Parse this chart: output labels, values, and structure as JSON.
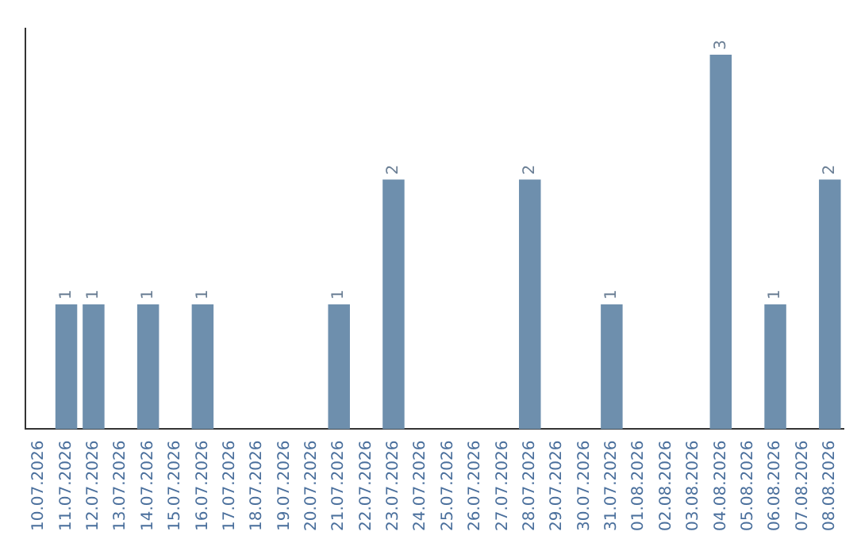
{
  "chart_data": {
    "type": "bar",
    "categories": [
      "10.07.2026",
      "11.07.2026",
      "12.07.2026",
      "13.07.2026",
      "14.07.2026",
      "15.07.2026",
      "16.07.2026",
      "17.07.2026",
      "18.07.2026",
      "19.07.2026",
      "20.07.2026",
      "21.07.2026",
      "22.07.2026",
      "23.07.2026",
      "24.07.2026",
      "25.07.2026",
      "26.07.2026",
      "27.07.2026",
      "28.07.2026",
      "29.07.2026",
      "30.07.2026",
      "31.07.2026",
      "01.08.2026",
      "02.08.2026",
      "03.08.2026",
      "04.08.2026",
      "05.08.2026",
      "06.08.2026",
      "07.08.2026",
      "08.08.2026"
    ],
    "values": [
      null,
      1,
      1,
      null,
      1,
      null,
      1,
      null,
      null,
      null,
      null,
      1,
      null,
      2,
      null,
      null,
      null,
      null,
      2,
      null,
      null,
      1,
      null,
      null,
      null,
      3,
      null,
      1,
      null,
      2
    ],
    "color": "#6e8fad",
    "data_labels": true,
    "grid": false,
    "legend": false,
    "tick_labels": "x"
  }
}
